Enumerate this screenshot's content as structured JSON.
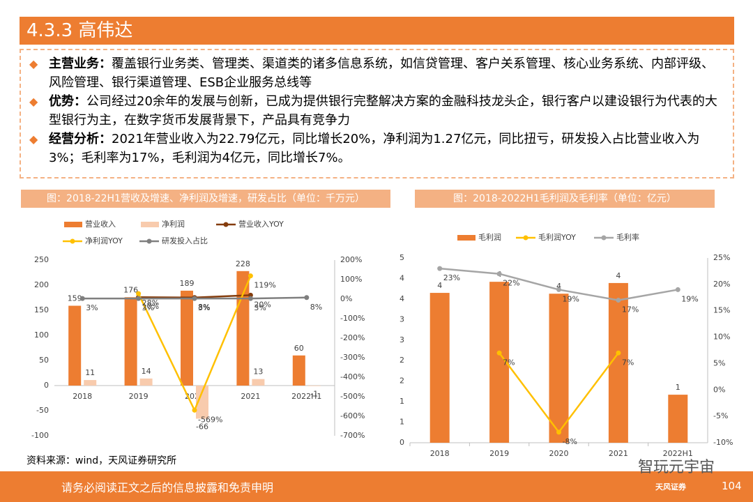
{
  "header": {
    "title": "4.3.3 高伟达"
  },
  "bullets": [
    {
      "label": "主营业务：",
      "text": "覆盖银行业务类、管理类、渠道类的诸多信息系统，如信贷管理、客户关系管理、核心业务系统、内部评级、风险管理、银行渠道管理、ESB企业服务总线等"
    },
    {
      "label": "优势：",
      "text": "公司经过20余年的发展与创新，已成为提供银行完整解决方案的金融科技龙头企，银行客户以建设银行为代表的大型银行为主，在数字货币发展背景下，产品具有竞争力"
    },
    {
      "label": "经营分析：",
      "text": "2021年营业收入为22.79亿元，同比增长20%，净利润为1.27亿元，同比扭亏，研发投入占比营业收入为3%；毛利率为17%，毛利润为4亿元，同比增长7%。"
    }
  ],
  "chart_data": [
    {
      "type": "bar",
      "title": "图：2018-22H1营收及增速、净利润及增速，研发占比（单位：千万元）",
      "categories": [
        "2018",
        "2019",
        "2020",
        "2021",
        "2022H1"
      ],
      "ylim": [
        -100,
        250
      ],
      "yticks": [
        -100,
        -50,
        0,
        50,
        100,
        150,
        200,
        250
      ],
      "y2lim": [
        -700,
        200
      ],
      "y2ticks": [
        {
          "value": -700,
          "label": "-700%"
        },
        {
          "value": -600,
          "label": "-600%"
        },
        {
          "value": -500,
          "label": "-500%"
        },
        {
          "value": -400,
          "label": "-400%"
        },
        {
          "value": -300,
          "label": "-300%"
        },
        {
          "value": -200,
          "label": "-200%"
        },
        {
          "value": -100,
          "label": "-100%"
        },
        {
          "value": 0,
          "label": "0%"
        },
        {
          "value": 100,
          "label": "100%"
        },
        {
          "value": 200,
          "label": "200%"
        }
      ],
      "series": [
        {
          "name": "营业收入",
          "type": "bar",
          "color": "#ed7d31",
          "values": [
            159,
            176,
            189,
            228,
            60
          ]
        },
        {
          "name": "净利润",
          "type": "bar",
          "color": "#f8cbad",
          "values": [
            11,
            14,
            -66,
            13,
            -1
          ]
        },
        {
          "name": "营业收入YOY",
          "type": "line",
          "axis": "y2",
          "color": "#843c0c",
          "values": [
            null,
            10,
            8,
            20,
            null
          ],
          "value_labels": [
            null,
            "10%",
            "8%",
            "20%",
            null
          ]
        },
        {
          "name": "净利润YOY",
          "type": "line",
          "axis": "y2",
          "color": "#ffc000",
          "values": [
            null,
            28,
            -569,
            119,
            null
          ],
          "value_labels": [
            null,
            "28%",
            "-569%",
            "119%",
            null
          ]
        },
        {
          "name": "研发投入占比",
          "type": "line",
          "axis": "y2",
          "color": "#7f7f7f",
          "values": [
            3,
            3,
            3,
            3,
            8
          ],
          "value_labels": [
            "3%",
            "3%",
            "3%",
            "3%",
            "8%"
          ]
        }
      ]
    },
    {
      "type": "bar",
      "title": "图：2018-2022H1毛利润及毛利率（单位：亿元）",
      "categories": [
        "2018",
        "2019",
        "2020",
        "2021",
        "2022H1"
      ],
      "ylim": [
        0,
        4.5
      ],
      "yticks": [
        0,
        {
          "value": 0.5,
          "label": "1"
        },
        1,
        {
          "value": 1.5,
          "label": "2"
        },
        2,
        {
          "value": 2.5,
          "label": "3"
        },
        3,
        {
          "value": 3.5,
          "label": "4"
        },
        4,
        {
          "value": 4.5,
          "label": "5"
        }
      ],
      "y2lim": [
        -10,
        25
      ],
      "y2ticks": [
        {
          "value": -10,
          "label": "-10%"
        },
        {
          "value": -5,
          "label": "-5%"
        },
        {
          "value": 0,
          "label": "0%"
        },
        {
          "value": 5,
          "label": "5%"
        },
        {
          "value": 10,
          "label": "10%"
        },
        {
          "value": 15,
          "label": "15%"
        },
        {
          "value": 20,
          "label": "20%"
        },
        {
          "value": 25,
          "label": "25%"
        }
      ],
      "series": [
        {
          "name": "毛利润",
          "type": "bar",
          "color": "#ed7d31",
          "values": [
            3.65,
            3.92,
            3.63,
            3.89,
            1.17
          ],
          "value_labels": [
            "4",
            "4",
            "4",
            "4",
            "1"
          ]
        },
        {
          "name": "毛利润YOY",
          "type": "line",
          "axis": "y2",
          "color": "#ffc000",
          "values": [
            null,
            7,
            -8,
            7,
            null
          ],
          "value_labels": [
            null,
            "7%",
            "-8%",
            "7%",
            null
          ]
        },
        {
          "name": "毛利率",
          "type": "line",
          "axis": "y2",
          "color": "#a5a5a5",
          "values": [
            23,
            22,
            19,
            17,
            19
          ],
          "value_labels": [
            "23%",
            "22%",
            "19%",
            "17%",
            "19%"
          ]
        }
      ]
    }
  ],
  "footer": {
    "source": "资料来源：wind，天风证券研究所",
    "disclaimer": "请务必阅读正文之后的信息披露和免责申明",
    "page": "104",
    "logo": "智玩元宇宙",
    "brand": "天风证券"
  }
}
